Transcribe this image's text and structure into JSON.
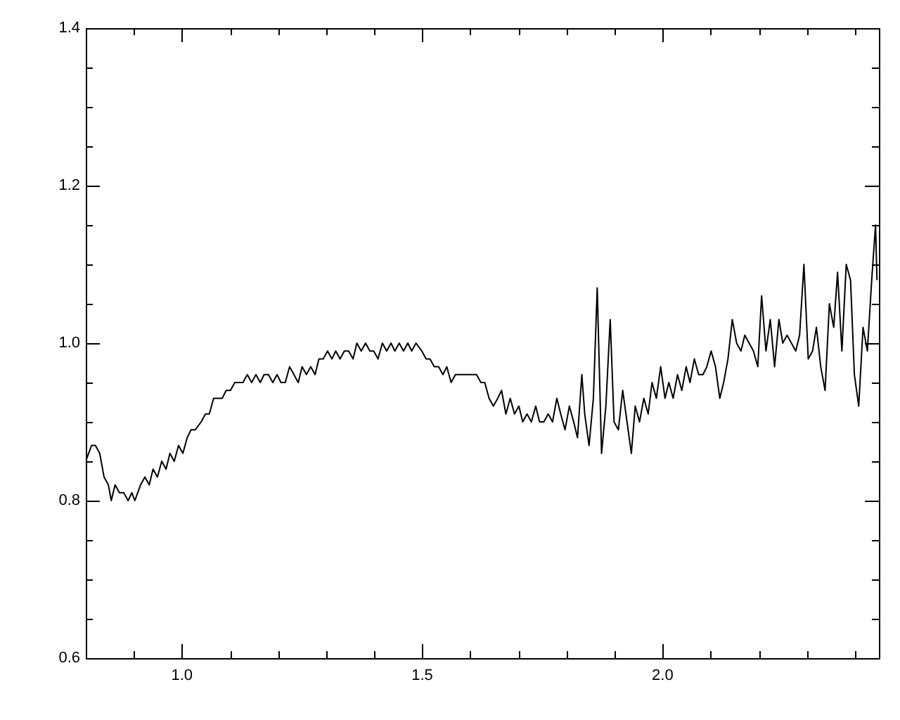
{
  "chart_data": {
    "type": "line",
    "legend": false,
    "grid": false,
    "marker": "none",
    "line_style": "solid",
    "xlim": [
      0.8,
      2.45
    ],
    "xticks": [
      {
        "value": 0.8,
        "label": null
      },
      {
        "value": 0.9,
        "label": null
      },
      {
        "value": 1.0,
        "label": "1.0"
      },
      {
        "value": 1.1,
        "label": null
      },
      {
        "value": 1.2,
        "label": null
      },
      {
        "value": 1.3,
        "label": null
      },
      {
        "value": 1.4,
        "label": null
      },
      1.5,
      {
        "value": 1.6,
        "label": null
      },
      {
        "value": 1.7,
        "label": null
      },
      {
        "value": 1.8,
        "label": null
      },
      {
        "value": 1.9,
        "label": null
      },
      {
        "value": 2.0,
        "label": "2.0"
      },
      {
        "value": 2.1,
        "label": null
      },
      {
        "value": 2.2,
        "label": null
      },
      {
        "value": 2.3,
        "label": null
      },
      {
        "value": 2.4,
        "label": null
      }
    ],
    "ylim": [
      0.6,
      1.4
    ],
    "yticks": [
      0.6,
      {
        "value": 0.65,
        "label": null
      },
      {
        "value": 0.7,
        "label": null
      },
      {
        "value": 0.75,
        "label": null
      },
      0.8,
      {
        "value": 0.85,
        "label": null
      },
      {
        "value": 0.9,
        "label": null
      },
      {
        "value": 0.95,
        "label": null
      },
      {
        "value": 1.0,
        "label": "1.0"
      },
      {
        "value": 1.05,
        "label": null
      },
      {
        "value": 1.1,
        "label": null
      },
      {
        "value": 1.15,
        "label": null
      },
      1.2,
      {
        "value": 1.25,
        "label": null
      },
      {
        "value": 1.3,
        "label": null
      },
      {
        "value": 1.35,
        "label": null
      },
      1.4
    ],
    "series": [
      {
        "color": "#000000",
        "x": [
          0.8,
          0.812,
          0.82,
          0.829,
          0.838,
          0.847,
          0.853,
          0.861,
          0.87,
          0.879,
          0.888,
          0.896,
          0.902,
          0.914,
          0.923,
          0.932,
          0.94,
          0.949,
          0.958,
          0.967,
          0.975,
          0.984,
          0.993,
          1.002,
          1.011,
          1.019,
          1.028,
          1.04,
          1.049,
          1.057,
          1.066,
          1.075,
          1.084,
          1.092,
          1.101,
          1.11,
          1.119,
          1.127,
          1.136,
          1.145,
          1.154,
          1.163,
          1.171,
          1.18,
          1.189,
          1.198,
          1.206,
          1.215,
          1.224,
          1.233,
          1.242,
          1.25,
          1.259,
          1.268,
          1.277,
          1.285,
          1.294,
          1.303,
          1.312,
          1.32,
          1.329,
          1.338,
          1.347,
          1.356,
          1.364,
          1.373,
          1.382,
          1.391,
          1.399,
          1.408,
          1.417,
          1.426,
          1.435,
          1.443,
          1.452,
          1.461,
          1.47,
          1.478,
          1.487,
          1.499,
          1.508,
          1.516,
          1.525,
          1.534,
          1.543,
          1.551,
          1.56,
          1.569,
          1.578,
          1.587,
          1.595,
          1.604,
          1.613,
          1.622,
          1.63,
          1.639,
          1.648,
          1.657,
          1.665,
          1.674,
          1.683,
          1.692,
          1.701,
          1.709,
          1.718,
          1.727,
          1.736,
          1.744,
          1.753,
          1.762,
          1.771,
          1.78,
          1.788,
          1.797,
          1.806,
          1.815,
          1.823,
          1.832,
          1.838,
          1.847,
          1.856,
          1.864,
          1.873,
          1.882,
          1.891,
          1.899,
          1.908,
          1.917,
          1.926,
          1.935,
          1.943,
          1.952,
          1.961,
          1.97,
          1.978,
          1.987,
          1.996,
          2.005,
          2.013,
          2.022,
          2.031,
          2.04,
          2.049,
          2.057,
          2.066,
          2.075,
          2.084,
          2.092,
          2.101,
          2.11,
          2.119,
          2.127,
          2.136,
          2.145,
          2.154,
          2.163,
          2.171,
          2.18,
          2.189,
          2.198,
          2.206,
          2.215,
          2.224,
          2.233,
          2.242,
          2.25,
          2.259,
          2.268,
          2.277,
          2.285,
          2.294,
          2.303,
          2.312,
          2.32,
          2.329,
          2.338,
          2.347,
          2.356,
          2.364,
          2.373,
          2.382,
          2.391,
          2.399,
          2.408,
          2.417,
          2.426,
          2.435,
          2.443,
          2.446
        ],
        "values": [
          0.85,
          0.87,
          0.87,
          0.86,
          0.83,
          0.82,
          0.8,
          0.82,
          0.81,
          0.81,
          0.8,
          0.81,
          0.8,
          0.82,
          0.83,
          0.82,
          0.84,
          0.83,
          0.85,
          0.84,
          0.86,
          0.85,
          0.87,
          0.86,
          0.88,
          0.89,
          0.89,
          0.9,
          0.91,
          0.91,
          0.93,
          0.93,
          0.93,
          0.94,
          0.94,
          0.95,
          0.95,
          0.95,
          0.96,
          0.95,
          0.96,
          0.95,
          0.96,
          0.96,
          0.95,
          0.96,
          0.95,
          0.95,
          0.97,
          0.96,
          0.95,
          0.97,
          0.96,
          0.97,
          0.96,
          0.98,
          0.98,
          0.99,
          0.98,
          0.99,
          0.98,
          0.99,
          0.99,
          0.98,
          1.0,
          0.99,
          1.0,
          0.99,
          0.99,
          0.98,
          1.0,
          0.99,
          1.0,
          0.99,
          1.0,
          0.99,
          1.0,
          0.99,
          1.0,
          0.99,
          0.98,
          0.98,
          0.97,
          0.97,
          0.96,
          0.97,
          0.95,
          0.96,
          0.96,
          0.96,
          0.96,
          0.96,
          0.96,
          0.95,
          0.95,
          0.93,
          0.92,
          0.93,
          0.94,
          0.91,
          0.93,
          0.91,
          0.92,
          0.9,
          0.91,
          0.9,
          0.92,
          0.9,
          0.9,
          0.91,
          0.9,
          0.93,
          0.91,
          0.89,
          0.92,
          0.9,
          0.88,
          0.96,
          0.91,
          0.87,
          0.93,
          1.07,
          0.86,
          0.92,
          1.03,
          0.9,
          0.89,
          0.94,
          0.9,
          0.86,
          0.92,
          0.9,
          0.93,
          0.91,
          0.95,
          0.93,
          0.97,
          0.93,
          0.95,
          0.93,
          0.96,
          0.94,
          0.97,
          0.95,
          0.98,
          0.96,
          0.96,
          0.97,
          0.99,
          0.97,
          0.93,
          0.95,
          0.98,
          1.03,
          1.0,
          0.99,
          1.01,
          1.0,
          0.99,
          0.97,
          1.06,
          0.99,
          1.03,
          0.97,
          1.03,
          1.0,
          1.01,
          1.0,
          0.99,
          1.01,
          1.1,
          0.98,
          0.99,
          1.02,
          0.97,
          0.94,
          1.05,
          1.02,
          1.09,
          0.99,
          1.1,
          1.08,
          0.96,
          0.92,
          1.02,
          0.99,
          1.08,
          1.15,
          1.08
        ]
      }
    ]
  }
}
